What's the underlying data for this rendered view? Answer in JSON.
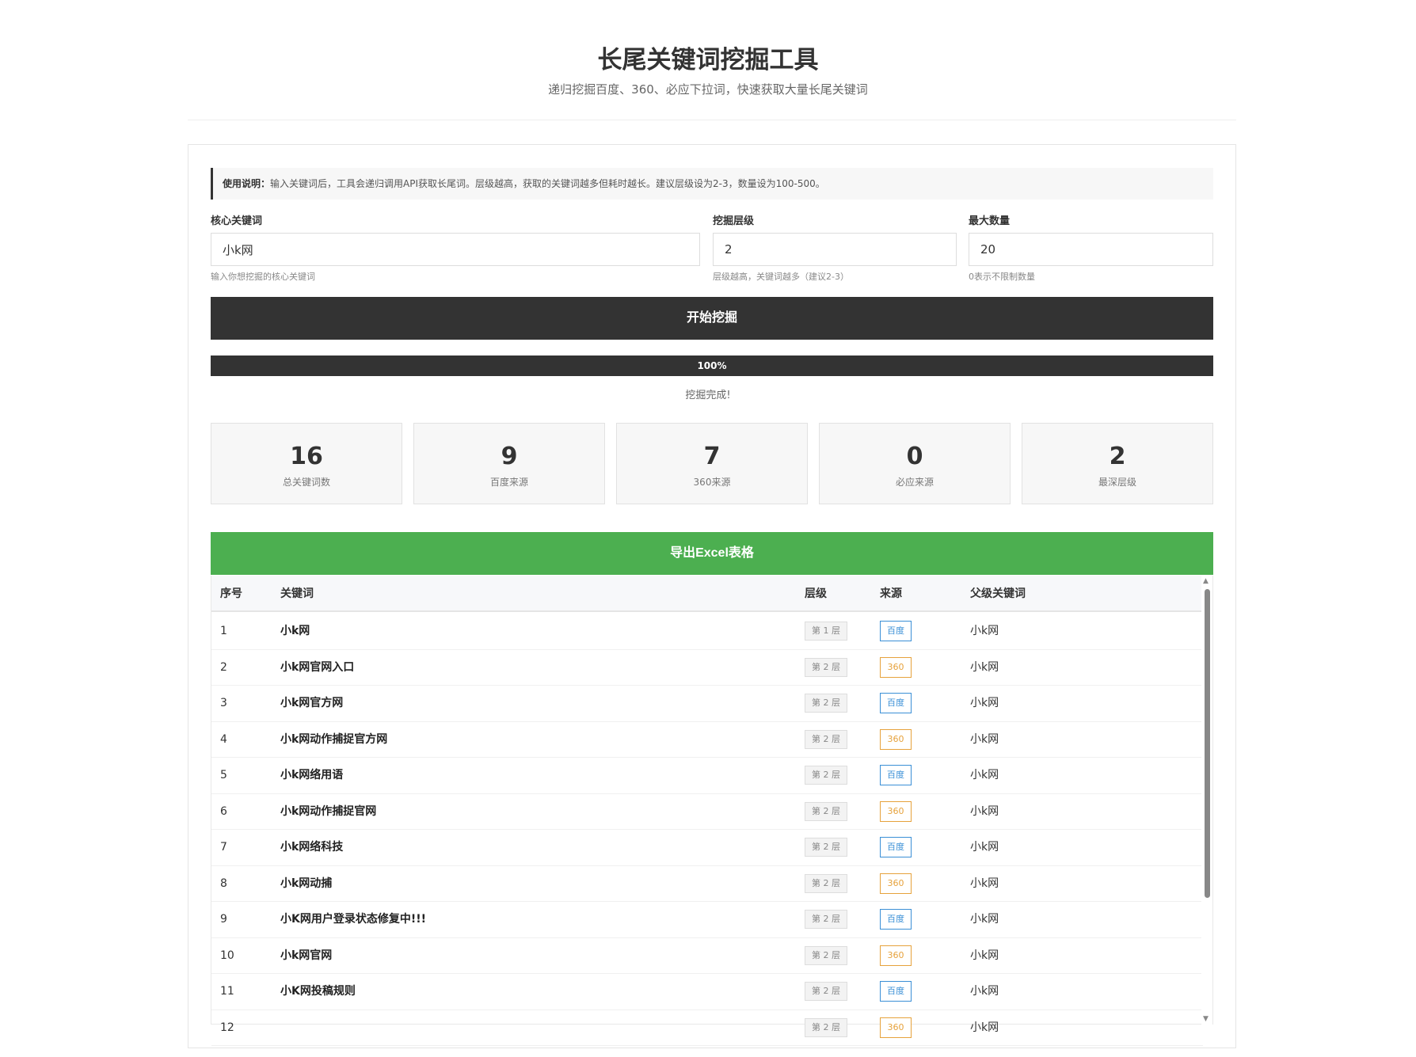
{
  "header": {
    "title": "长尾关键词挖掘工具",
    "subtitle": "递归挖掘百度、360、必应下拉词，快速获取大量长尾关键词"
  },
  "notice": {
    "label": "使用说明：",
    "text": "输入关键词后，工具会递归调用API获取长尾词。层级越高，获取的关键词越多但耗时越长。建议层级设为2-3，数量设为100-500。"
  },
  "form": {
    "keyword": {
      "label": "核心关键词",
      "value": "小k网",
      "hint": "输入你想挖掘的核心关键词"
    },
    "depth": {
      "label": "挖掘层级",
      "value": "2",
      "hint": "层级越高，关键词越多（建议2-3）"
    },
    "max": {
      "label": "最大数量",
      "value": "20",
      "hint": "0表示不限制数量"
    }
  },
  "start_button": "开始挖掘",
  "progress": {
    "percent": 100,
    "label": "100%",
    "status": "挖掘完成!"
  },
  "stats": [
    {
      "value": "16",
      "label": "总关键词数"
    },
    {
      "value": "9",
      "label": "百度来源"
    },
    {
      "value": "7",
      "label": "360来源"
    },
    {
      "value": "0",
      "label": "必应来源"
    },
    {
      "value": "2",
      "label": "最深层级"
    }
  ],
  "export_button": "导出Excel表格",
  "colors": {
    "dark": "#333333",
    "green": "#4caf50",
    "baidu": "#3a8fd6",
    "s360": "#e6a23c"
  },
  "table": {
    "columns": [
      "序号",
      "关键词",
      "层级",
      "来源",
      "父级关键词"
    ],
    "rows": [
      {
        "no": "1",
        "keyword": "小k网",
        "level": "第 1 层",
        "source": "百度",
        "parent": "小k网"
      },
      {
        "no": "2",
        "keyword": "小k网官网入口",
        "level": "第 2 层",
        "source": "360",
        "parent": "小k网"
      },
      {
        "no": "3",
        "keyword": "小k网官方网",
        "level": "第 2 层",
        "source": "百度",
        "parent": "小k网"
      },
      {
        "no": "4",
        "keyword": "小k网动作捕捉官方网",
        "level": "第 2 层",
        "source": "360",
        "parent": "小k网"
      },
      {
        "no": "5",
        "keyword": "小k网络用语",
        "level": "第 2 层",
        "source": "百度",
        "parent": "小k网"
      },
      {
        "no": "6",
        "keyword": "小k网动作捕捉官网",
        "level": "第 2 层",
        "source": "360",
        "parent": "小k网"
      },
      {
        "no": "7",
        "keyword": "小k网络科技",
        "level": "第 2 层",
        "source": "百度",
        "parent": "小k网"
      },
      {
        "no": "8",
        "keyword": "小k网动捕",
        "level": "第 2 层",
        "source": "360",
        "parent": "小k网"
      },
      {
        "no": "9",
        "keyword": "小K网用户登录状态修复中!!!",
        "level": "第 2 层",
        "source": "百度",
        "parent": "小k网"
      },
      {
        "no": "10",
        "keyword": "小k网官网",
        "level": "第 2 层",
        "source": "360",
        "parent": "小k网"
      },
      {
        "no": "11",
        "keyword": "小K网投稿规则",
        "level": "第 2 层",
        "source": "百度",
        "parent": "小k网"
      },
      {
        "no": "12",
        "keyword": "",
        "level": "第 2 层",
        "source": "360",
        "parent": "小k网"
      }
    ]
  }
}
